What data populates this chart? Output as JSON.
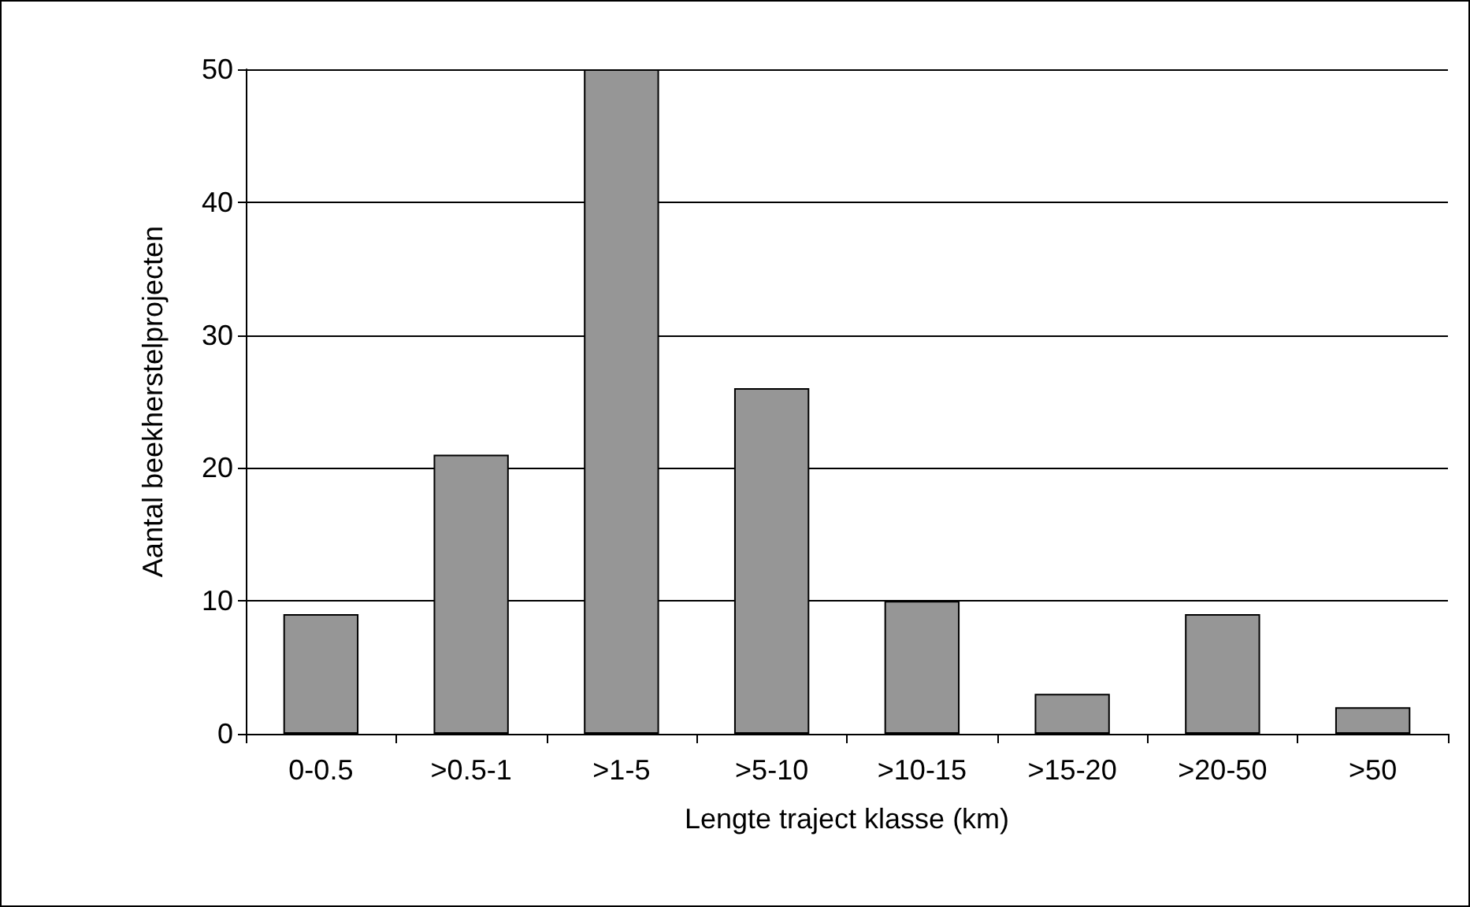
{
  "chart_data": {
    "type": "bar",
    "xlabel": "Lengte traject klasse (km)",
    "ylabel": "Aantal beekherstelprojecten",
    "categories": [
      "0-0.5",
      ">0.5-1",
      ">1-5",
      ">5-10",
      ">10-15",
      ">15-20",
      ">20-50",
      ">50"
    ],
    "values": [
      9,
      21,
      50,
      26,
      10,
      3,
      9,
      2
    ],
    "color": "#969696",
    "ylim": [
      0,
      50
    ],
    "yticks": [
      0,
      10,
      20,
      30,
      40,
      50
    ],
    "grid": "y"
  }
}
